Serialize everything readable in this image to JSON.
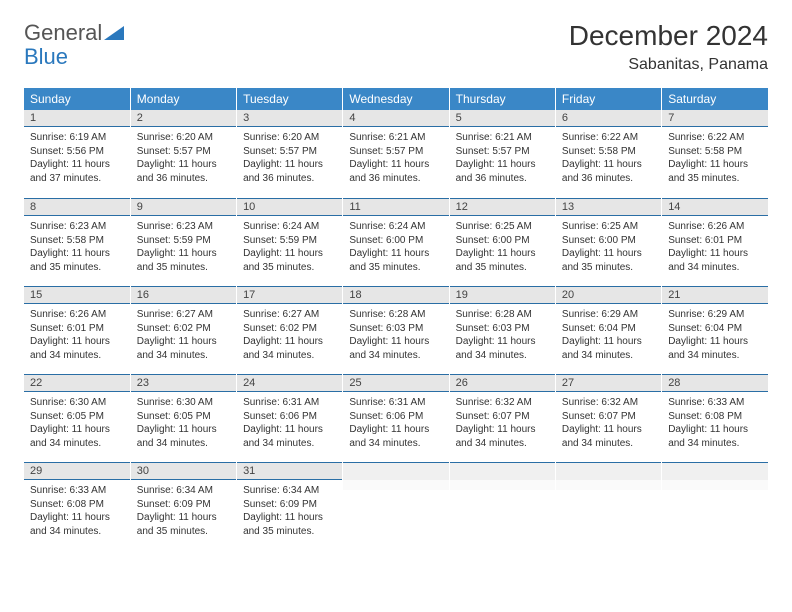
{
  "logo": {
    "text1": "General",
    "text2": "Blue"
  },
  "title": "December 2024",
  "location": "Sabanitas, Panama",
  "colors": {
    "header_bg": "#3a87c7",
    "header_text": "#ffffff",
    "daynum_bg": "#e6e6e6",
    "rule": "#2a6ea5",
    "body_text": "#333333"
  },
  "weekdays": [
    "Sunday",
    "Monday",
    "Tuesday",
    "Wednesday",
    "Thursday",
    "Friday",
    "Saturday"
  ],
  "weeks": [
    [
      {
        "n": "1",
        "sr": "6:19 AM",
        "ss": "5:56 PM",
        "dl": "11 hours and 37 minutes."
      },
      {
        "n": "2",
        "sr": "6:20 AM",
        "ss": "5:57 PM",
        "dl": "11 hours and 36 minutes."
      },
      {
        "n": "3",
        "sr": "6:20 AM",
        "ss": "5:57 PM",
        "dl": "11 hours and 36 minutes."
      },
      {
        "n": "4",
        "sr": "6:21 AM",
        "ss": "5:57 PM",
        "dl": "11 hours and 36 minutes."
      },
      {
        "n": "5",
        "sr": "6:21 AM",
        "ss": "5:57 PM",
        "dl": "11 hours and 36 minutes."
      },
      {
        "n": "6",
        "sr": "6:22 AM",
        "ss": "5:58 PM",
        "dl": "11 hours and 36 minutes."
      },
      {
        "n": "7",
        "sr": "6:22 AM",
        "ss": "5:58 PM",
        "dl": "11 hours and 35 minutes."
      }
    ],
    [
      {
        "n": "8",
        "sr": "6:23 AM",
        "ss": "5:58 PM",
        "dl": "11 hours and 35 minutes."
      },
      {
        "n": "9",
        "sr": "6:23 AM",
        "ss": "5:59 PM",
        "dl": "11 hours and 35 minutes."
      },
      {
        "n": "10",
        "sr": "6:24 AM",
        "ss": "5:59 PM",
        "dl": "11 hours and 35 minutes."
      },
      {
        "n": "11",
        "sr": "6:24 AM",
        "ss": "6:00 PM",
        "dl": "11 hours and 35 minutes."
      },
      {
        "n": "12",
        "sr": "6:25 AM",
        "ss": "6:00 PM",
        "dl": "11 hours and 35 minutes."
      },
      {
        "n": "13",
        "sr": "6:25 AM",
        "ss": "6:00 PM",
        "dl": "11 hours and 35 minutes."
      },
      {
        "n": "14",
        "sr": "6:26 AM",
        "ss": "6:01 PM",
        "dl": "11 hours and 34 minutes."
      }
    ],
    [
      {
        "n": "15",
        "sr": "6:26 AM",
        "ss": "6:01 PM",
        "dl": "11 hours and 34 minutes."
      },
      {
        "n": "16",
        "sr": "6:27 AM",
        "ss": "6:02 PM",
        "dl": "11 hours and 34 minutes."
      },
      {
        "n": "17",
        "sr": "6:27 AM",
        "ss": "6:02 PM",
        "dl": "11 hours and 34 minutes."
      },
      {
        "n": "18",
        "sr": "6:28 AM",
        "ss": "6:03 PM",
        "dl": "11 hours and 34 minutes."
      },
      {
        "n": "19",
        "sr": "6:28 AM",
        "ss": "6:03 PM",
        "dl": "11 hours and 34 minutes."
      },
      {
        "n": "20",
        "sr": "6:29 AM",
        "ss": "6:04 PM",
        "dl": "11 hours and 34 minutes."
      },
      {
        "n": "21",
        "sr": "6:29 AM",
        "ss": "6:04 PM",
        "dl": "11 hours and 34 minutes."
      }
    ],
    [
      {
        "n": "22",
        "sr": "6:30 AM",
        "ss": "6:05 PM",
        "dl": "11 hours and 34 minutes."
      },
      {
        "n": "23",
        "sr": "6:30 AM",
        "ss": "6:05 PM",
        "dl": "11 hours and 34 minutes."
      },
      {
        "n": "24",
        "sr": "6:31 AM",
        "ss": "6:06 PM",
        "dl": "11 hours and 34 minutes."
      },
      {
        "n": "25",
        "sr": "6:31 AM",
        "ss": "6:06 PM",
        "dl": "11 hours and 34 minutes."
      },
      {
        "n": "26",
        "sr": "6:32 AM",
        "ss": "6:07 PM",
        "dl": "11 hours and 34 minutes."
      },
      {
        "n": "27",
        "sr": "6:32 AM",
        "ss": "6:07 PM",
        "dl": "11 hours and 34 minutes."
      },
      {
        "n": "28",
        "sr": "6:33 AM",
        "ss": "6:08 PM",
        "dl": "11 hours and 34 minutes."
      }
    ],
    [
      {
        "n": "29",
        "sr": "6:33 AM",
        "ss": "6:08 PM",
        "dl": "11 hours and 34 minutes."
      },
      {
        "n": "30",
        "sr": "6:34 AM",
        "ss": "6:09 PM",
        "dl": "11 hours and 35 minutes."
      },
      {
        "n": "31",
        "sr": "6:34 AM",
        "ss": "6:09 PM",
        "dl": "11 hours and 35 minutes."
      },
      null,
      null,
      null,
      null
    ]
  ],
  "labels": {
    "sunrise": "Sunrise:",
    "sunset": "Sunset:",
    "daylight": "Daylight:"
  }
}
